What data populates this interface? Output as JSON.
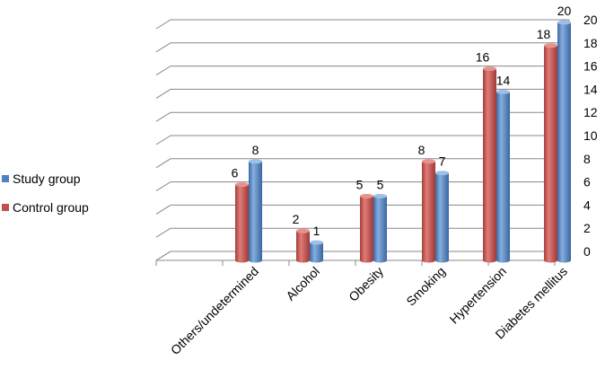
{
  "chart_data": {
    "type": "bar",
    "title": "",
    "xlabel": "",
    "ylabel": "",
    "categories": [
      "Others/undetermined",
      "Alcohol",
      "Obesity",
      "Smoking",
      "Hypertension",
      "Diabetes mellitus"
    ],
    "series": [
      {
        "name": "Control group",
        "color": "#c0504d",
        "values": [
          6,
          2,
          5,
          8,
          16,
          18
        ]
      },
      {
        "name": "Study group",
        "color": "#4f81bd",
        "values": [
          8,
          1,
          5,
          7,
          14,
          20
        ]
      }
    ],
    "ylim": [
      0,
      20
    ],
    "yticks": [
      0,
      2,
      4,
      6,
      8,
      10,
      12,
      14,
      16,
      18,
      20
    ],
    "grid": true,
    "legend_position": "left",
    "legend_order": [
      "Study group",
      "Control group"
    ],
    "y_axis_side": "right",
    "style": "3d-cylinder"
  }
}
